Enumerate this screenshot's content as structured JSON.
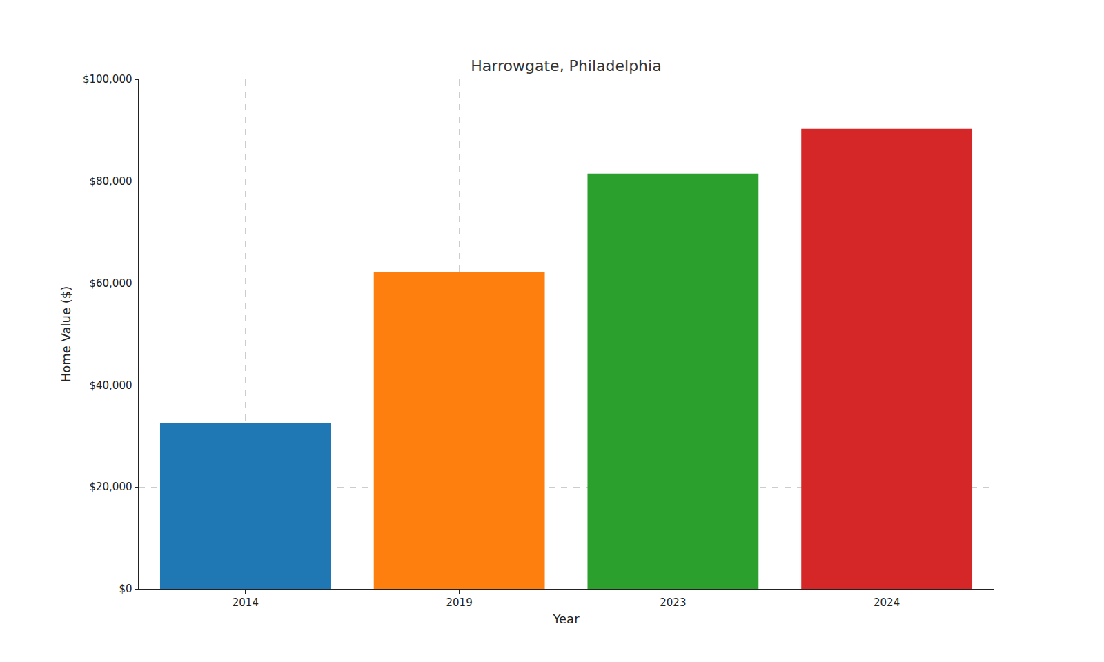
{
  "chart_data": {
    "type": "bar",
    "title": "Harrowgate, Philadelphia",
    "x_label": "Year",
    "y_label": "Home Value ($)",
    "categories": [
      "2014",
      "2019",
      "2023",
      "2024"
    ],
    "values": [
      32600,
      62200,
      81500,
      90300
    ],
    "colors": [
      "#1f77b4",
      "#ff7f0e",
      "#2ca02c",
      "#d62728"
    ],
    "ylim": [
      0,
      100000
    ],
    "yticks": [
      {
        "value": 0,
        "label": "$0"
      },
      {
        "value": 20000,
        "label": "$20,000"
      },
      {
        "value": 40000,
        "label": "$40,000"
      },
      {
        "value": 60000,
        "label": "$60,000"
      },
      {
        "value": 80000,
        "label": "$80,000"
      },
      {
        "value": 100000,
        "label": "$100,000"
      }
    ],
    "grid": true
  }
}
